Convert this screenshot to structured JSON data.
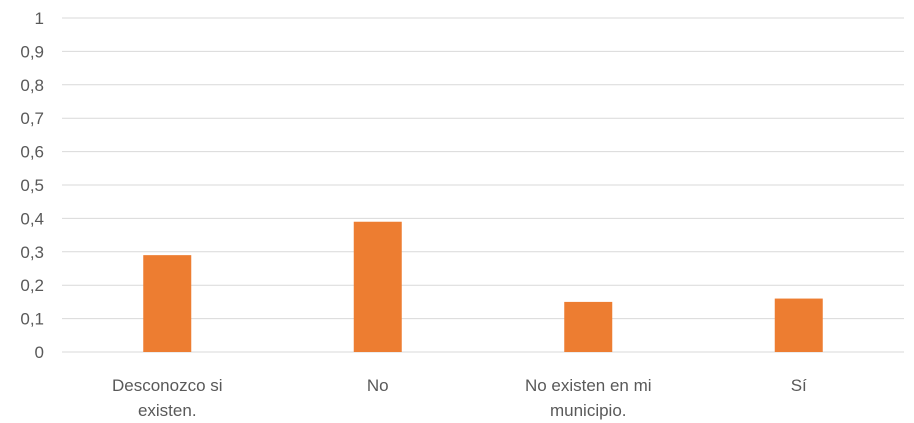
{
  "chart_data": {
    "type": "bar",
    "categories": [
      [
        "Desconozco si",
        "existen."
      ],
      [
        "No"
      ],
      [
        "No existen en mi",
        "municipio."
      ],
      [
        "Sí"
      ]
    ],
    "values": [
      0.29,
      0.39,
      0.15,
      0.16
    ],
    "ylim": [
      0,
      1
    ],
    "yticks": [
      "0",
      "0,1",
      "0,2",
      "0,3",
      "0,4",
      "0,5",
      "0,6",
      "0,7",
      "0,8",
      "0,9",
      "1"
    ],
    "grid": true,
    "bar_color": "#ED7D31",
    "grid_color": "#D9D9D9",
    "label_color": "#595959"
  }
}
